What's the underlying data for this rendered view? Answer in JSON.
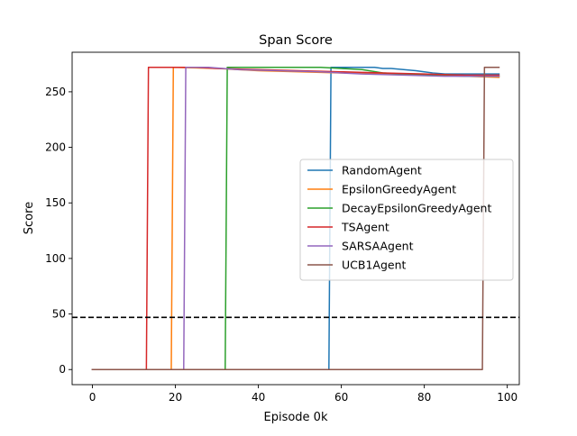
{
  "chart_data": {
    "type": "line",
    "title": "Span Score",
    "xlabel": "Episode 0k",
    "ylabel": "Score",
    "xlim": [
      -4.9,
      102.9
    ],
    "ylim": [
      -13.6,
      285.6
    ],
    "xticks": [
      0,
      20,
      40,
      60,
      80,
      100
    ],
    "yticks": [
      0,
      50,
      100,
      150,
      200,
      250
    ],
    "xtick_labels": [
      "0",
      "20",
      "40",
      "60",
      "80",
      "100"
    ],
    "ytick_labels": [
      "0",
      "50",
      "100",
      "150",
      "200",
      "250"
    ],
    "grid": false,
    "legend_position": "center right",
    "hline": {
      "y": 47,
      "style": "dashed",
      "color": "#000000"
    },
    "series": [
      {
        "name": "RandomAgent",
        "color": "#1f77b4",
        "x": [
          0,
          57,
          57.5,
          62,
          66,
          68,
          70,
          72,
          75,
          78,
          80,
          82,
          85,
          98
        ],
        "y": [
          0,
          0,
          272,
          272,
          272,
          272,
          271,
          271,
          270,
          269,
          268,
          267,
          266,
          266
        ]
      },
      {
        "name": "EpsilonGreedyAgent",
        "color": "#ff7f0e",
        "x": [
          0,
          19,
          19.5,
          30,
          40,
          50,
          60,
          70,
          80,
          90,
          98
        ],
        "y": [
          0,
          0,
          272,
          271,
          269,
          268,
          267,
          266,
          265,
          264,
          263
        ]
      },
      {
        "name": "DecayEpsilonGreedyAgent",
        "color": "#2ca02c",
        "x": [
          0,
          32,
          32.5,
          40,
          50,
          55,
          60,
          65,
          70,
          80,
          90,
          98
        ],
        "y": [
          0,
          0,
          272,
          272,
          272,
          272,
          271,
          270,
          267,
          265,
          264,
          264
        ]
      },
      {
        "name": "TSAgent",
        "color": "#d62728",
        "x": [
          0,
          13,
          13.5,
          20,
          25,
          30,
          40,
          50,
          60,
          70,
          80,
          90,
          98
        ],
        "y": [
          0,
          0,
          272,
          272,
          272,
          271,
          270,
          269,
          268,
          267,
          266,
          265,
          265
        ]
      },
      {
        "name": "SARSAAgent",
        "color": "#9467bd",
        "x": [
          0,
          22,
          22.5,
          28,
          35,
          45,
          55,
          65,
          75,
          85,
          98
        ],
        "y": [
          0,
          0,
          272,
          272,
          270,
          269,
          268,
          266,
          265,
          264,
          264
        ]
      },
      {
        "name": "UCB1Agent",
        "color": "#8c564b",
        "x": [
          0,
          94,
          94.5,
          98
        ],
        "y": [
          0,
          0,
          272,
          272
        ]
      }
    ]
  }
}
